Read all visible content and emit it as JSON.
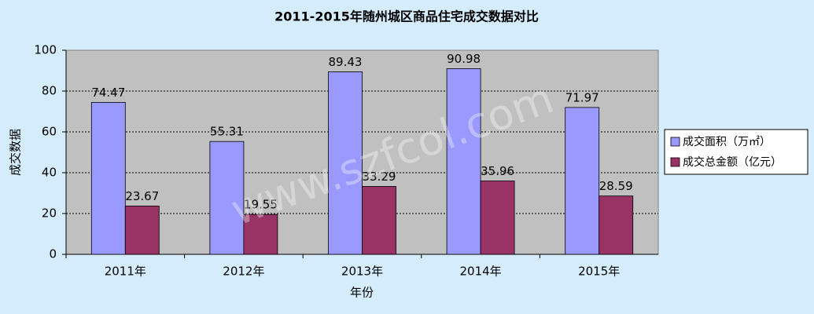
{
  "chart_data": {
    "type": "bar",
    "title": "2011-2015年随州城区商品住宅成交数据对比",
    "x_label": "年份",
    "y_label": "成交数据",
    "watermark": "www.szfcol.com",
    "categories": [
      "2011年",
      "2012年",
      "2013年",
      "2014年",
      "2015年"
    ],
    "series": [
      {
        "name": "成交面积（万㎡）",
        "color": "#9999ff",
        "values": [
          74.47,
          55.31,
          89.43,
          90.98,
          71.97
        ]
      },
      {
        "name": "成交总金额（亿元）",
        "color": "#993366",
        "values": [
          23.67,
          19.55,
          33.29,
          35.96,
          28.59
        ]
      }
    ],
    "ylim": [
      0,
      100
    ],
    "yticks": [
      0,
      20,
      40,
      60,
      80,
      100
    ],
    "grid": true,
    "legend": "right"
  }
}
